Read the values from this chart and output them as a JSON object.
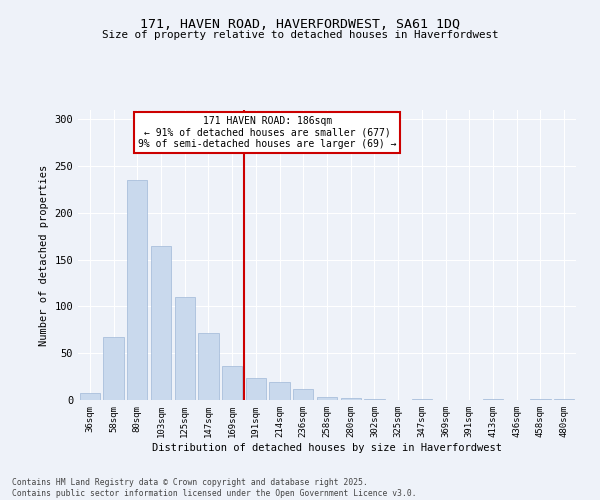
{
  "title_line1": "171, HAVEN ROAD, HAVERFORDWEST, SA61 1DQ",
  "title_line2": "Size of property relative to detached houses in Haverfordwest",
  "xlabel": "Distribution of detached houses by size in Haverfordwest",
  "ylabel": "Number of detached properties",
  "footer_line1": "Contains HM Land Registry data © Crown copyright and database right 2025.",
  "footer_line2": "Contains public sector information licensed under the Open Government Licence v3.0.",
  "annotation_line1": "171 HAVEN ROAD: 186sqm",
  "annotation_line2": "← 91% of detached houses are smaller (677)",
  "annotation_line3": "9% of semi-detached houses are larger (69) →",
  "bar_labels": [
    "36sqm",
    "58sqm",
    "80sqm",
    "103sqm",
    "125sqm",
    "147sqm",
    "169sqm",
    "191sqm",
    "214sqm",
    "236sqm",
    "258sqm",
    "280sqm",
    "302sqm",
    "325sqm",
    "347sqm",
    "369sqm",
    "391sqm",
    "413sqm",
    "436sqm",
    "458sqm",
    "480sqm"
  ],
  "bar_values": [
    8,
    67,
    235,
    165,
    110,
    72,
    36,
    24,
    19,
    12,
    3,
    2,
    1,
    0,
    1,
    0,
    0,
    1,
    0,
    1,
    1
  ],
  "bar_color": "#c9d9ed",
  "bar_edgecolor": "#a0b8d8",
  "vline_color": "#cc0000",
  "background_color": "#eef2f9",
  "grid_color": "#ffffff",
  "ylim": [
    0,
    310
  ],
  "yticks": [
    0,
    50,
    100,
    150,
    200,
    250,
    300
  ]
}
